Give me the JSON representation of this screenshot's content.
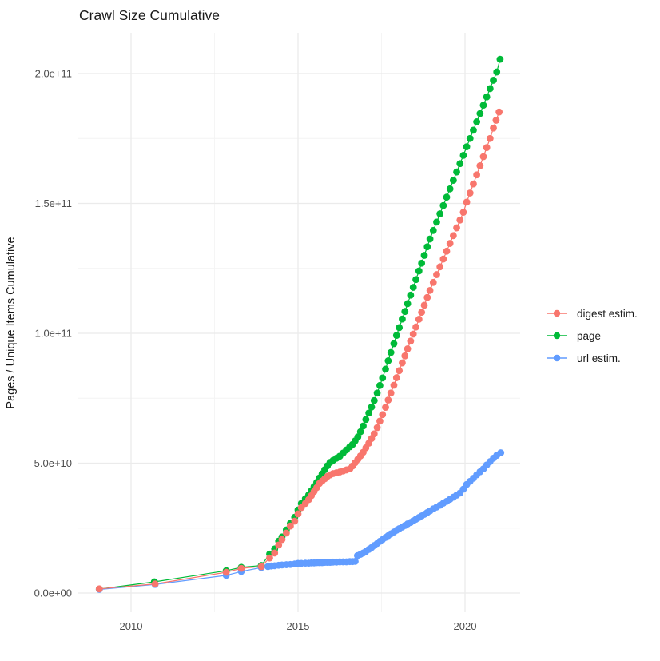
{
  "colors": {
    "background": "#ffffff",
    "grid_major": "#ebebeb",
    "grid_minor": "#f4f4f4",
    "tick_text": "#4d4d4d",
    "title_text": "#1a1a1a",
    "digest": "#F8766D",
    "page": "#00BA38",
    "url": "#619CFF"
  },
  "legend": {
    "items": [
      {
        "label": "digest estim.",
        "color": "#F8766D"
      },
      {
        "label": "page",
        "color": "#00BA38"
      },
      {
        "label": "url estim.",
        "color": "#619CFF"
      }
    ]
  },
  "chart_data": {
    "type": "line",
    "title": "Crawl Size Cumulative",
    "xlabel": "",
    "ylabel": "Pages / Unique Items Cumulative",
    "grid": true,
    "legend_position": "right",
    "xlim": [
      2008.4,
      2021.65
    ],
    "ylim": [
      0,
      216000000000.0
    ],
    "x_ticks": [
      {
        "label": "2010",
        "year": 2010
      },
      {
        "label": "2015",
        "year": 2015
      },
      {
        "label": "2020",
        "year": 2020
      }
    ],
    "x_minor": [
      2012.5,
      2017.5
    ],
    "y_ticks": [
      {
        "label": "0.0e+00",
        "billions": 0
      },
      {
        "label": "5.0e+10",
        "billions": 50
      },
      {
        "label": "1.0e+11",
        "billions": 100
      },
      {
        "label": "1.5e+11",
        "billions": 150
      },
      {
        "label": "2.0e+11",
        "billions": 200
      }
    ],
    "y_minor_billions": [
      25,
      75,
      125,
      175
    ],
    "value_unit": "1e9 pages / unique items",
    "z_order": [
      "page",
      "url estim.",
      "digest estim."
    ],
    "series": [
      {
        "name": "digest estim.",
        "color": "#F8766D",
        "points": [
          [
            2009.05,
            1.6
          ],
          [
            2010.72,
            3.5
          ],
          [
            2012.85,
            8.0
          ],
          [
            2013.3,
            9.5
          ],
          [
            2013.9,
            10.2
          ],
          [
            2014.15,
            13.5
          ],
          [
            2014.3,
            15.4
          ],
          [
            2014.42,
            18.5
          ],
          [
            2014.52,
            20.6
          ],
          [
            2014.65,
            23.1
          ],
          [
            2014.77,
            25.8
          ],
          [
            2014.9,
            27.7
          ],
          [
            2015.0,
            30.5
          ],
          [
            2015.1,
            32.9
          ],
          [
            2015.22,
            34.5
          ],
          [
            2015.32,
            36.0
          ],
          [
            2015.4,
            37.5
          ],
          [
            2015.48,
            39.1
          ],
          [
            2015.56,
            40.6
          ],
          [
            2015.64,
            42.2
          ],
          [
            2015.72,
            43.1
          ],
          [
            2015.8,
            44.0
          ],
          [
            2015.88,
            44.9
          ],
          [
            2015.96,
            45.5
          ],
          [
            2016.05,
            46.0
          ],
          [
            2016.15,
            46.3
          ],
          [
            2016.25,
            46.6
          ],
          [
            2016.35,
            47.0
          ],
          [
            2016.45,
            47.4
          ],
          [
            2016.55,
            47.8
          ],
          [
            2016.63,
            48.9
          ],
          [
            2016.71,
            50.2
          ],
          [
            2016.79,
            51.5
          ],
          [
            2016.87,
            52.8
          ],
          [
            2016.95,
            54.2
          ],
          [
            2017.03,
            55.9
          ],
          [
            2017.12,
            57.7
          ],
          [
            2017.2,
            59.5
          ],
          [
            2017.28,
            61.3
          ],
          [
            2017.37,
            63.7
          ],
          [
            2017.45,
            66.2
          ],
          [
            2017.53,
            68.7
          ],
          [
            2017.62,
            71.5
          ],
          [
            2017.7,
            74.3
          ],
          [
            2017.78,
            77.0
          ],
          [
            2017.87,
            80.0
          ],
          [
            2017.95,
            82.9
          ],
          [
            2018.03,
            85.6
          ],
          [
            2018.12,
            88.6
          ],
          [
            2018.2,
            91.3
          ],
          [
            2018.28,
            94.0
          ],
          [
            2018.37,
            97.0
          ],
          [
            2018.45,
            99.7
          ],
          [
            2018.53,
            102.4
          ],
          [
            2018.62,
            105.4
          ],
          [
            2018.7,
            108.1
          ],
          [
            2018.78,
            110.8
          ],
          [
            2018.87,
            113.8
          ],
          [
            2018.95,
            116.5
          ],
          [
            2019.05,
            119.6
          ],
          [
            2019.15,
            122.6
          ],
          [
            2019.25,
            125.6
          ],
          [
            2019.35,
            128.6
          ],
          [
            2019.45,
            131.6
          ],
          [
            2019.55,
            134.6
          ],
          [
            2019.65,
            137.6
          ],
          [
            2019.75,
            140.6
          ],
          [
            2019.85,
            143.6
          ],
          [
            2019.95,
            146.6
          ],
          [
            2020.05,
            150.5
          ],
          [
            2020.15,
            154.0
          ],
          [
            2020.25,
            157.5
          ],
          [
            2020.35,
            161.0
          ],
          [
            2020.45,
            164.5
          ],
          [
            2020.55,
            168.0
          ],
          [
            2020.65,
            171.5
          ],
          [
            2020.75,
            175.0
          ],
          [
            2020.85,
            179.0
          ],
          [
            2020.93,
            182.0
          ],
          [
            2021.02,
            185.2
          ]
        ]
      },
      {
        "name": "page",
        "color": "#00BA38",
        "points": [
          [
            2009.05,
            1.5
          ],
          [
            2010.7,
            4.3
          ],
          [
            2012.85,
            8.6
          ],
          [
            2013.3,
            9.9
          ],
          [
            2013.9,
            10.6
          ],
          [
            2014.15,
            15.0
          ],
          [
            2014.3,
            17.0
          ],
          [
            2014.42,
            20.0
          ],
          [
            2014.52,
            21.6
          ],
          [
            2014.65,
            24.3
          ],
          [
            2014.77,
            26.8
          ],
          [
            2014.9,
            29.2
          ],
          [
            2015.0,
            32.0
          ],
          [
            2015.1,
            34.5
          ],
          [
            2015.22,
            36.3
          ],
          [
            2015.32,
            37.8
          ],
          [
            2015.4,
            39.4
          ],
          [
            2015.48,
            41.0
          ],
          [
            2015.56,
            42.6
          ],
          [
            2015.64,
            44.3
          ],
          [
            2015.72,
            45.9
          ],
          [
            2015.8,
            47.5
          ],
          [
            2015.88,
            49.0
          ],
          [
            2015.96,
            50.3
          ],
          [
            2016.05,
            51.1
          ],
          [
            2016.15,
            51.9
          ],
          [
            2016.25,
            52.7
          ],
          [
            2016.35,
            53.9
          ],
          [
            2016.45,
            55.1
          ],
          [
            2016.55,
            56.3
          ],
          [
            2016.63,
            57.2
          ],
          [
            2016.71,
            58.6
          ],
          [
            2016.79,
            60.1
          ],
          [
            2016.87,
            62.1
          ],
          [
            2016.95,
            64.3
          ],
          [
            2017.03,
            66.8
          ],
          [
            2017.12,
            69.3
          ],
          [
            2017.2,
            71.6
          ],
          [
            2017.28,
            74.1
          ],
          [
            2017.37,
            77.0
          ],
          [
            2017.45,
            79.9
          ],
          [
            2017.53,
            82.8
          ],
          [
            2017.62,
            86.2
          ],
          [
            2017.7,
            89.4
          ],
          [
            2017.78,
            92.6
          ],
          [
            2017.87,
            96.0
          ],
          [
            2017.95,
            99.2
          ],
          [
            2018.03,
            102.2
          ],
          [
            2018.12,
            105.5
          ],
          [
            2018.2,
            108.4
          ],
          [
            2018.28,
            111.4
          ],
          [
            2018.37,
            114.7
          ],
          [
            2018.45,
            117.7
          ],
          [
            2018.53,
            120.7
          ],
          [
            2018.62,
            124.0
          ],
          [
            2018.7,
            127.0
          ],
          [
            2018.78,
            130.0
          ],
          [
            2018.87,
            133.3
          ],
          [
            2018.95,
            136.3
          ],
          [
            2019.05,
            139.6
          ],
          [
            2019.15,
            142.8
          ],
          [
            2019.25,
            146.0
          ],
          [
            2019.35,
            149.2
          ],
          [
            2019.45,
            152.4
          ],
          [
            2019.55,
            155.6
          ],
          [
            2019.65,
            158.9
          ],
          [
            2019.75,
            162.1
          ],
          [
            2019.85,
            165.3
          ],
          [
            2019.95,
            168.5
          ],
          [
            2020.05,
            171.8
          ],
          [
            2020.15,
            175.0
          ],
          [
            2020.25,
            178.2
          ],
          [
            2020.35,
            181.4
          ],
          [
            2020.45,
            184.6
          ],
          [
            2020.55,
            187.8
          ],
          [
            2020.65,
            191.0
          ],
          [
            2020.75,
            194.2
          ],
          [
            2020.85,
            197.4
          ],
          [
            2020.95,
            200.6
          ],
          [
            2021.05,
            205.5
          ]
        ]
      },
      {
        "name": "url estim.",
        "color": "#619CFF",
        "points": [
          [
            2009.05,
            1.4
          ],
          [
            2010.72,
            3.3
          ],
          [
            2012.85,
            6.8
          ],
          [
            2013.3,
            8.3
          ],
          [
            2013.9,
            9.8
          ],
          [
            2014.1,
            10.2
          ],
          [
            2014.2,
            10.4
          ],
          [
            2014.3,
            10.5
          ],
          [
            2014.42,
            10.7
          ],
          [
            2014.52,
            10.8
          ],
          [
            2014.65,
            10.9
          ],
          [
            2014.77,
            11.0
          ],
          [
            2014.9,
            11.2
          ],
          [
            2015.0,
            11.4
          ],
          [
            2015.1,
            11.4
          ],
          [
            2015.22,
            11.5
          ],
          [
            2015.32,
            11.5
          ],
          [
            2015.4,
            11.6
          ],
          [
            2015.48,
            11.6
          ],
          [
            2015.56,
            11.7
          ],
          [
            2015.64,
            11.7
          ],
          [
            2015.72,
            11.7
          ],
          [
            2015.8,
            11.8
          ],
          [
            2015.88,
            11.8
          ],
          [
            2015.96,
            11.8
          ],
          [
            2016.05,
            11.9
          ],
          [
            2016.15,
            11.9
          ],
          [
            2016.25,
            12.0
          ],
          [
            2016.35,
            12.0
          ],
          [
            2016.45,
            12.0
          ],
          [
            2016.55,
            12.1
          ],
          [
            2016.63,
            12.1
          ],
          [
            2016.71,
            12.2
          ],
          [
            2016.78,
            14.4
          ],
          [
            2016.87,
            14.9
          ],
          [
            2016.95,
            15.4
          ],
          [
            2017.03,
            16.0
          ],
          [
            2017.12,
            16.8
          ],
          [
            2017.2,
            17.5
          ],
          [
            2017.28,
            18.3
          ],
          [
            2017.37,
            19.1
          ],
          [
            2017.45,
            19.9
          ],
          [
            2017.53,
            20.6
          ],
          [
            2017.62,
            21.4
          ],
          [
            2017.7,
            22.1
          ],
          [
            2017.78,
            22.8
          ],
          [
            2017.87,
            23.5
          ],
          [
            2017.95,
            24.2
          ],
          [
            2018.03,
            24.8
          ],
          [
            2018.12,
            25.4
          ],
          [
            2018.2,
            26.0
          ],
          [
            2018.28,
            26.6
          ],
          [
            2018.37,
            27.2
          ],
          [
            2018.45,
            27.8
          ],
          [
            2018.53,
            28.4
          ],
          [
            2018.62,
            29.1
          ],
          [
            2018.7,
            29.7
          ],
          [
            2018.78,
            30.3
          ],
          [
            2018.87,
            31.0
          ],
          [
            2018.95,
            31.6
          ],
          [
            2019.05,
            32.4
          ],
          [
            2019.15,
            33.1
          ],
          [
            2019.25,
            33.8
          ],
          [
            2019.35,
            34.6
          ],
          [
            2019.45,
            35.3
          ],
          [
            2019.55,
            36.1
          ],
          [
            2019.65,
            36.9
          ],
          [
            2019.75,
            37.7
          ],
          [
            2019.85,
            38.5
          ],
          [
            2019.95,
            40.0
          ],
          [
            2020.05,
            41.8
          ],
          [
            2020.15,
            43.0
          ],
          [
            2020.25,
            44.2
          ],
          [
            2020.35,
            45.5
          ],
          [
            2020.45,
            46.7
          ],
          [
            2020.55,
            47.8
          ],
          [
            2020.65,
            49.3
          ],
          [
            2020.75,
            50.6
          ],
          [
            2020.85,
            51.9
          ],
          [
            2020.95,
            53.0
          ],
          [
            2021.07,
            54.0
          ]
        ]
      }
    ]
  }
}
